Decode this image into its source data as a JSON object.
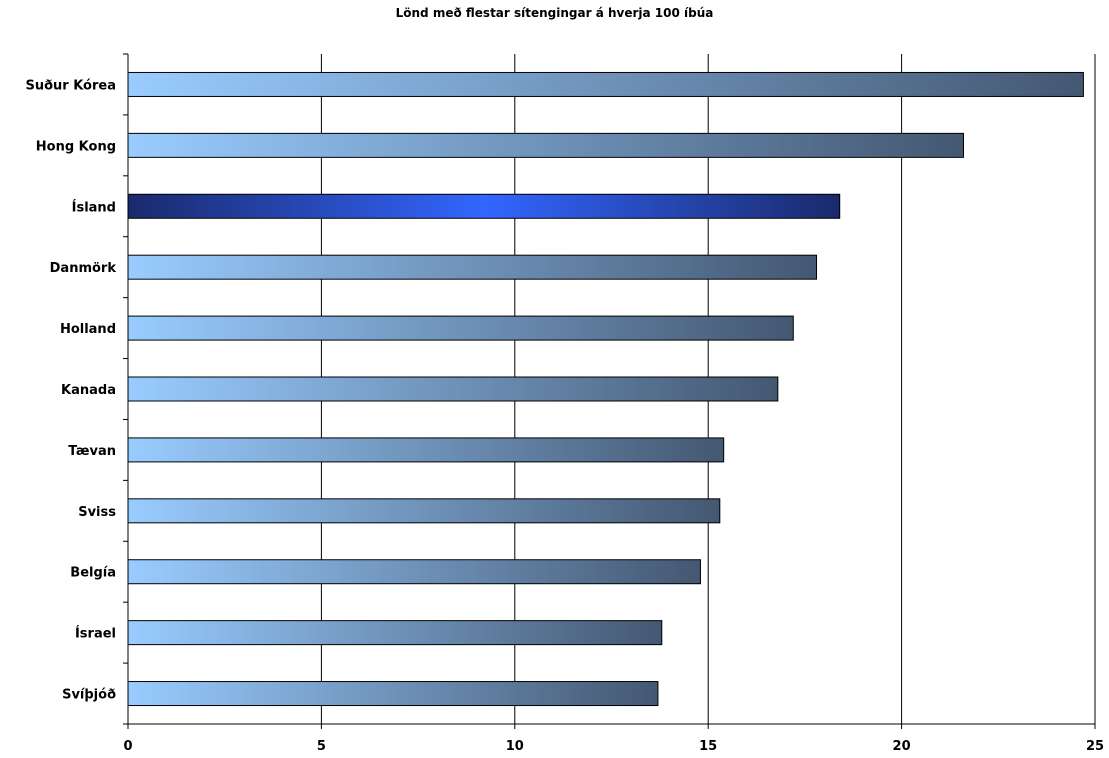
{
  "chart_data": {
    "type": "bar",
    "orientation": "horizontal",
    "title": "Lönd með flestar sítengingar á hverja 100 íbúa",
    "xlabel": "",
    "ylabel": "",
    "xlim": [
      0,
      25
    ],
    "x_ticks": [
      "0",
      "5",
      "10",
      "15",
      "20",
      "25"
    ],
    "grid": true,
    "legend": "none",
    "categories": [
      "Suður Kórea",
      "Hong Kong",
      "Ísland",
      "Danmörk",
      "Holland",
      "Kanada",
      "Tævan",
      "Sviss",
      "Belgía",
      "Ísrael",
      "Svíþjóð"
    ],
    "values": [
      24.7,
      21.6,
      18.4,
      17.8,
      17.2,
      16.8,
      15.4,
      15.3,
      14.8,
      13.8,
      13.7
    ],
    "highlight": "Ísland",
    "colors": {
      "bar_start": "#99ccff",
      "bar_end": "#445872",
      "highlight_edge": "#1a2a6c",
      "highlight_center": "#3366ff"
    }
  }
}
